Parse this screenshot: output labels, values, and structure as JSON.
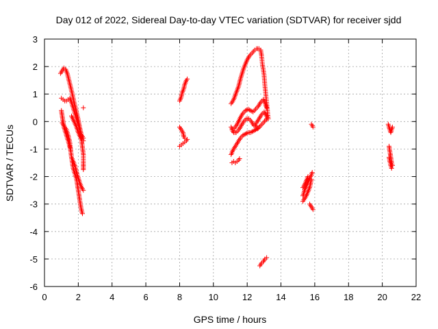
{
  "chart_data": {
    "type": "scatter",
    "title": "Day 012 of 2022, Sidereal Day-to-day VTEC variation (SDTVAR) for receiver sjdd",
    "xlabel": "GPS time / hours",
    "ylabel": "SDTVAR / TECUs",
    "xlim": [
      0,
      22
    ],
    "ylim": [
      -6,
      3
    ],
    "xticks": [
      0,
      2,
      4,
      6,
      8,
      10,
      12,
      14,
      16,
      18,
      20,
      22
    ],
    "yticks": [
      -6,
      -5,
      -4,
      -3,
      -2,
      -1,
      0,
      1,
      2,
      3
    ],
    "grid": true,
    "marker": "+",
    "marker_color": "#ff0000",
    "series": [
      {
        "name": "SDTVAR",
        "segments": [
          [
            [
              0.95,
              1.75
            ],
            [
              1.05,
              1.85
            ],
            [
              1.15,
              1.95
            ],
            [
              1.25,
              1.9
            ],
            [
              1.35,
              1.75
            ],
            [
              1.45,
              1.5
            ],
            [
              1.55,
              1.25
            ],
            [
              1.65,
              1.0
            ],
            [
              1.75,
              0.7
            ],
            [
              1.85,
              0.45
            ],
            [
              1.95,
              0.2
            ],
            [
              2.05,
              -0.1
            ],
            [
              2.15,
              -0.4
            ],
            [
              2.2,
              -0.7
            ],
            [
              2.25,
              -0.95
            ],
            [
              2.3,
              -1.2
            ],
            [
              2.3,
              -1.5
            ],
            [
              2.3,
              -1.75
            ]
          ],
          [
            [
              1.0,
              0.85
            ],
            [
              1.1,
              0.8
            ],
            [
              1.2,
              0.75
            ],
            [
              1.3,
              0.75
            ],
            [
              1.4,
              0.8
            ],
            [
              1.5,
              0.85
            ],
            [
              1.6,
              0.7
            ],
            [
              1.7,
              0.5
            ],
            [
              1.8,
              0.3
            ],
            [
              1.9,
              0.1
            ],
            [
              2.0,
              -0.1
            ],
            [
              2.1,
              -0.35
            ],
            [
              2.2,
              -0.5
            ],
            [
              2.3,
              -0.6
            ]
          ],
          [
            [
              1.0,
              0.4
            ],
            [
              1.05,
              0.2
            ],
            [
              1.1,
              0.0
            ],
            [
              1.15,
              -0.2
            ],
            [
              1.25,
              -0.4
            ],
            [
              1.35,
              -0.6
            ],
            [
              1.45,
              -0.8
            ],
            [
              1.55,
              -1.05
            ],
            [
              1.6,
              -1.3
            ],
            [
              1.65,
              -1.5
            ],
            [
              1.7,
              -1.7
            ],
            [
              1.8,
              -1.9
            ],
            [
              1.9,
              -2.1
            ],
            [
              1.95,
              -2.3
            ],
            [
              2.0,
              -2.5
            ],
            [
              2.05,
              -2.7
            ],
            [
              2.1,
              -2.9
            ],
            [
              2.15,
              -3.1
            ],
            [
              2.2,
              -3.25
            ],
            [
              2.25,
              -3.35
            ]
          ],
          [
            [
              1.05,
              -0.05
            ],
            [
              1.15,
              -0.15
            ],
            [
              1.3,
              -0.3
            ],
            [
              1.4,
              -0.5
            ],
            [
              1.5,
              -0.75
            ],
            [
              1.55,
              -1.05
            ],
            [
              1.6,
              -1.3
            ],
            [
              1.7,
              -1.45
            ],
            [
              1.8,
              -1.6
            ],
            [
              1.9,
              -1.85
            ],
            [
              2.0,
              -2.05
            ],
            [
              2.1,
              -2.25
            ],
            [
              2.2,
              -2.4
            ],
            [
              2.3,
              -2.5
            ]
          ],
          [
            [
              1.6,
              0.2
            ],
            [
              1.75,
              0.0
            ],
            [
              1.9,
              -0.2
            ],
            [
              2.0,
              -0.4
            ],
            [
              2.15,
              -0.6
            ],
            [
              2.3,
              -0.7
            ]
          ],
          [
            [
              2.3,
              0.5
            ]
          ],
          [
            [
              8.0,
              0.75
            ],
            [
              8.1,
              0.9
            ],
            [
              8.15,
              1.05
            ],
            [
              8.25,
              1.2
            ],
            [
              8.3,
              1.35
            ],
            [
              8.4,
              1.5
            ],
            [
              8.45,
              1.55
            ]
          ],
          [
            [
              8.0,
              -0.2
            ],
            [
              8.1,
              -0.3
            ],
            [
              8.2,
              -0.4
            ],
            [
              8.25,
              -0.55
            ],
            [
              8.3,
              -0.6
            ]
          ],
          [
            [
              8.0,
              -0.9
            ],
            [
              8.1,
              -0.85
            ],
            [
              8.2,
              -0.8
            ],
            [
              8.3,
              -0.75
            ],
            [
              8.4,
              -0.7
            ],
            [
              8.45,
              -0.65
            ]
          ],
          [
            [
              11.05,
              0.65
            ],
            [
              11.2,
              0.8
            ],
            [
              11.35,
              1.05
            ],
            [
              11.5,
              1.3
            ],
            [
              11.6,
              1.55
            ],
            [
              11.7,
              1.75
            ],
            [
              11.8,
              1.95
            ],
            [
              11.9,
              2.1
            ],
            [
              12.0,
              2.25
            ],
            [
              12.15,
              2.4
            ],
            [
              12.3,
              2.5
            ],
            [
              12.45,
              2.6
            ],
            [
              12.55,
              2.65
            ],
            [
              12.7,
              2.65
            ],
            [
              12.8,
              2.6
            ],
            [
              12.85,
              2.4
            ],
            [
              12.9,
              2.1
            ],
            [
              13.0,
              1.7
            ],
            [
              13.05,
              1.3
            ],
            [
              13.1,
              1.0
            ],
            [
              13.15,
              0.7
            ],
            [
              13.2,
              0.4
            ],
            [
              13.25,
              0.1
            ]
          ],
          [
            [
              11.05,
              -0.2
            ],
            [
              11.15,
              -0.3
            ],
            [
              11.3,
              -0.2
            ],
            [
              11.45,
              -0.05
            ],
            [
              11.6,
              0.15
            ],
            [
              11.75,
              0.3
            ],
            [
              11.9,
              0.4
            ],
            [
              12.05,
              0.45
            ],
            [
              12.2,
              0.4
            ],
            [
              12.35,
              0.35
            ],
            [
              12.5,
              0.45
            ],
            [
              12.65,
              0.55
            ],
            [
              12.8,
              0.7
            ],
            [
              12.95,
              0.8
            ],
            [
              13.05,
              0.7
            ],
            [
              13.15,
              0.5
            ]
          ],
          [
            [
              11.1,
              -0.3
            ],
            [
              11.2,
              -0.4
            ],
            [
              11.35,
              -0.4
            ],
            [
              11.5,
              -0.3
            ],
            [
              11.65,
              -0.15
            ],
            [
              11.8,
              0.0
            ],
            [
              11.95,
              0.1
            ],
            [
              12.1,
              0.1
            ],
            [
              12.25,
              0.0
            ],
            [
              12.4,
              -0.15
            ],
            [
              12.55,
              -0.05
            ],
            [
              12.7,
              0.1
            ],
            [
              12.85,
              0.25
            ],
            [
              13.0,
              0.35
            ],
            [
              13.15,
              0.2
            ]
          ],
          [
            [
              11.05,
              -1.2
            ],
            [
              11.15,
              -1.05
            ],
            [
              11.3,
              -0.9
            ],
            [
              11.45,
              -0.75
            ],
            [
              11.6,
              -0.6
            ],
            [
              11.75,
              -0.5
            ],
            [
              11.9,
              -0.45
            ],
            [
              12.05,
              -0.4
            ],
            [
              12.2,
              -0.4
            ],
            [
              12.35,
              -0.35
            ],
            [
              12.5,
              -0.3
            ],
            [
              12.65,
              -0.25
            ],
            [
              12.8,
              -0.15
            ],
            [
              12.95,
              -0.05
            ],
            [
              13.1,
              0.05
            ],
            [
              13.2,
              0.15
            ]
          ],
          [
            [
              11.1,
              -1.5
            ],
            [
              11.2,
              -1.45
            ],
            [
              11.3,
              -1.5
            ],
            [
              11.4,
              -1.45
            ],
            [
              11.5,
              -1.4
            ],
            [
              11.55,
              -1.35
            ]
          ],
          [
            [
              12.5,
              -0.15
            ],
            [
              12.6,
              -0.25
            ],
            [
              12.7,
              -0.2
            ]
          ],
          [
            [
              12.75,
              -5.25
            ],
            [
              12.85,
              -5.15
            ],
            [
              12.95,
              -5.1
            ],
            [
              13.05,
              -5.0
            ],
            [
              13.15,
              -4.95
            ]
          ],
          [
            [
              15.3,
              -2.7
            ],
            [
              15.4,
              -2.5
            ],
            [
              15.5,
              -2.35
            ],
            [
              15.6,
              -2.2
            ],
            [
              15.7,
              -2.05
            ],
            [
              15.8,
              -1.95
            ],
            [
              15.85,
              -1.85
            ]
          ],
          [
            [
              15.3,
              -2.9
            ],
            [
              15.4,
              -2.8
            ],
            [
              15.5,
              -2.7
            ],
            [
              15.6,
              -2.55
            ],
            [
              15.7,
              -2.4
            ],
            [
              15.75,
              -2.25
            ],
            [
              15.8,
              -2.1
            ]
          ],
          [
            [
              15.3,
              -2.4
            ],
            [
              15.4,
              -2.3
            ],
            [
              15.5,
              -2.15
            ],
            [
              15.6,
              -2.0
            ]
          ],
          [
            [
              15.7,
              -3.0
            ],
            [
              15.8,
              -3.1
            ],
            [
              15.9,
              -3.2
            ]
          ],
          [
            [
              15.8,
              -0.1
            ],
            [
              15.85,
              -0.15
            ],
            [
              15.9,
              -0.2
            ]
          ],
          [
            [
              20.35,
              -0.1
            ],
            [
              20.4,
              -0.2
            ],
            [
              20.45,
              -0.3
            ],
            [
              20.5,
              -0.4
            ],
            [
              20.55,
              -0.3
            ],
            [
              20.6,
              -0.2
            ]
          ],
          [
            [
              20.4,
              -0.9
            ],
            [
              20.45,
              -1.1
            ],
            [
              20.5,
              -1.3
            ],
            [
              20.55,
              -1.5
            ],
            [
              20.6,
              -1.6
            ]
          ],
          [
            [
              20.4,
              -1.3
            ],
            [
              20.45,
              -1.45
            ],
            [
              20.5,
              -1.6
            ],
            [
              20.55,
              -1.7
            ]
          ]
        ]
      }
    ]
  }
}
